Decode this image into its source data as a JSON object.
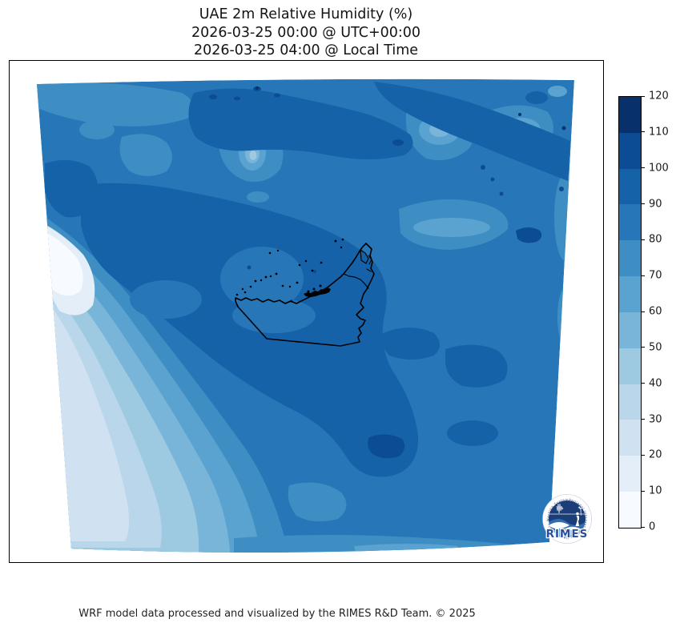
{
  "title": {
    "line1": "UAE 2m Relative Humidity (%)",
    "line2": "2026-03-25 00:00 @ UTC+00:00",
    "line3": "2026-03-25 04:00 @ Local Time"
  },
  "footer": {
    "credit": "WRF model data processed and visualized by the RIMES R&D Team. © 2025"
  },
  "logo": {
    "name": "RIMES",
    "ring_text": "Regional Integrated Multi-Hazard Early Warning System"
  },
  "colorbar": {
    "min": 0,
    "max": 120,
    "step": 10,
    "ticks": [
      0,
      10,
      20,
      30,
      40,
      50,
      60,
      70,
      80,
      90,
      100,
      110,
      120
    ],
    "block_colors_bottom_to_top": [
      "#f7fbff",
      "#e3eef8",
      "#d0e1f2",
      "#bad6eb",
      "#9ecae1",
      "#79b5d9",
      "#5aa2cf",
      "#3e8ec4",
      "#2777b8",
      "#1562a9",
      "#0b4c94",
      "#08306b"
    ]
  },
  "palette": {
    "0": "#f7fbff",
    "10": "#e3eef8",
    "20": "#d0e1f2",
    "30": "#bad6eb",
    "40": "#9ecae1",
    "50": "#79b5d9",
    "60": "#5aa2cf",
    "70": "#3e8ec4",
    "80": "#2777b8",
    "90": "#1562a9",
    "100": "#0b4c94",
    "110": "#08306b"
  },
  "chart_data": {
    "type": "heatmap",
    "title": "UAE 2m Relative Humidity (%)",
    "subtitle_utc": "2026-03-25 00:00 @ UTC+00:00",
    "subtitle_local": "2026-03-25 04:00 @ Local Time",
    "variable": "2m Relative Humidity",
    "units": "%",
    "region": "UAE and surrounding Arabian Peninsula / Arabian Gulf (WRF model domain, warped map projection)",
    "colorbar": {
      "orientation": "vertical-right",
      "range": [
        0,
        120
      ],
      "interval": 10,
      "tick_labels": [
        "0",
        "10",
        "20",
        "30",
        "40",
        "50",
        "60",
        "70",
        "80",
        "90",
        "100",
        "110",
        "120"
      ],
      "level_colors": {
        "0-10": "#f7fbff",
        "10-20": "#e3eef8",
        "20-30": "#d0e1f2",
        "30-40": "#bad6eb",
        "40-50": "#9ecae1",
        "50-60": "#79b5d9",
        "60-70": "#5aa2cf",
        "70-80": "#3e8ec4",
        "80-90": "#2777b8",
        "90-100": "#1562a9",
        "100-110": "#0b4c94",
        "110-120": "#08306b"
      }
    },
    "field_summary": [
      "Most of the domain sits in the 80-90% band (mid blue)",
      "Large 90-100% (dark blue) band across the upper-center and a diagonal mass through the center around/with the UAE",
      "Small 100-120% spots along the top edge and in the northeast quadrant",
      "Lighter 60-80% patches in the upper-left, top-right and along the right edge",
      "Dry gradient in the lower-left corner stepping down to 0-10% (near white)",
      "UAE political boundary and coastline drawn in black at center with island dots"
    ],
    "overlays": [
      "UAE border outline (black)",
      "RIMES circular logo bottom-right"
    ],
    "grid": false,
    "legend_position": "right colorbar"
  }
}
